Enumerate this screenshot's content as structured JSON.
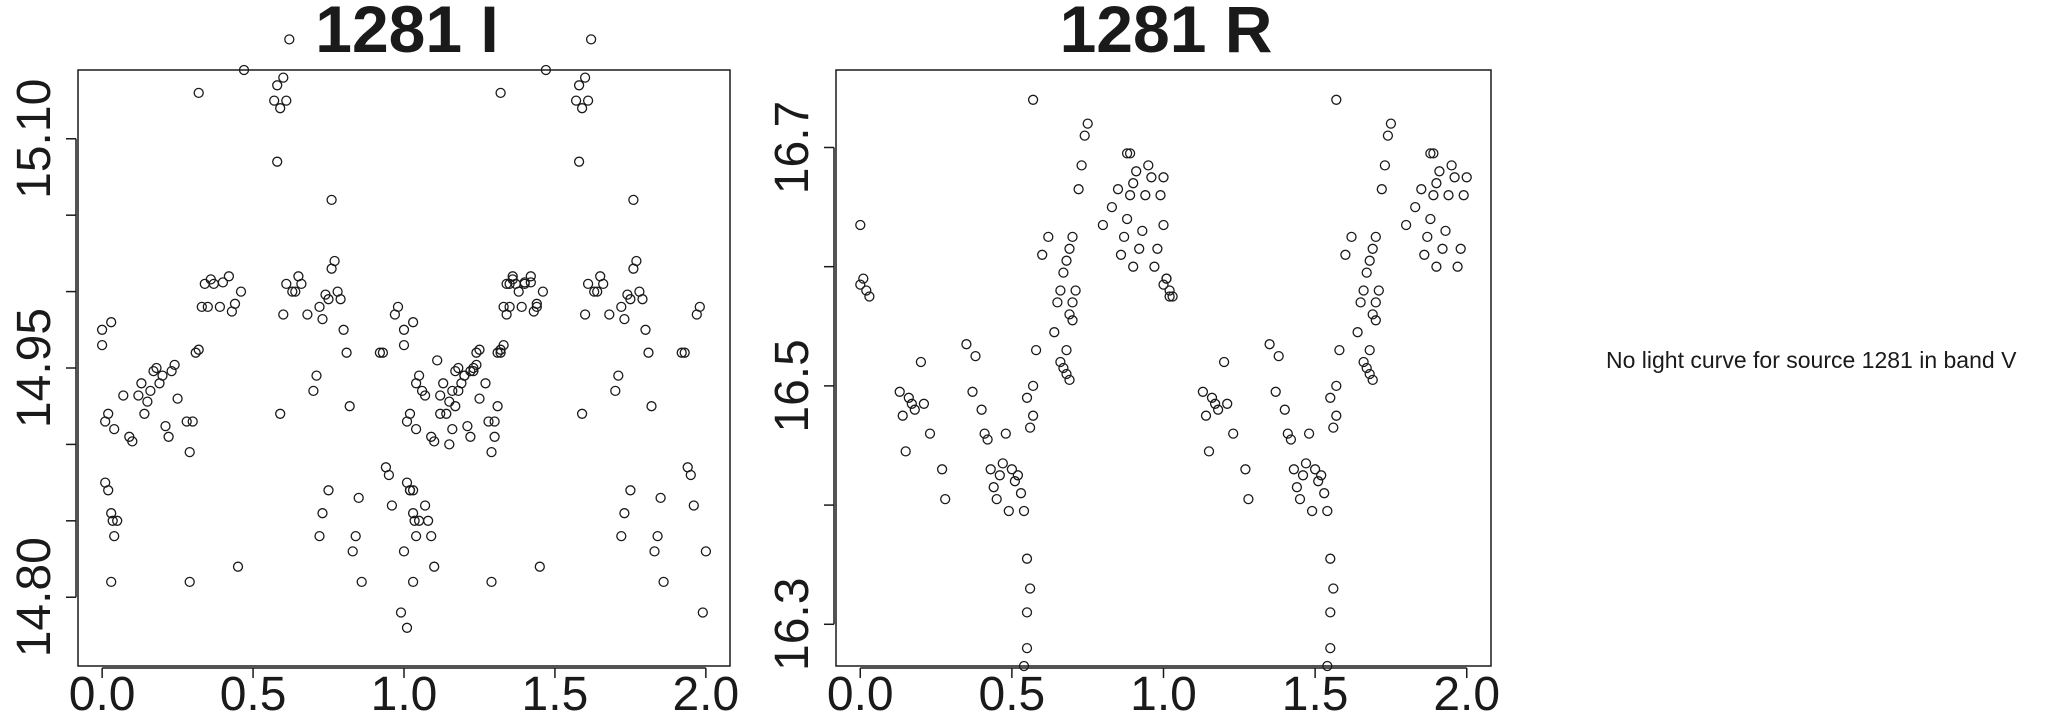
{
  "chart_data": [
    {
      "type": "scatter",
      "title": "1281 I",
      "xlim": [
        -0.08,
        2.08
      ],
      "ylim": [
        15.145,
        14.755
      ],
      "y_inverted": true,
      "x_ticks": [
        "0.0",
        "0.5",
        "1.0",
        "1.5",
        "2.0"
      ],
      "x_tick_values": [
        0.0,
        0.5,
        1.0,
        1.5,
        2.0
      ],
      "y_ticks": [
        "14.80",
        "14.95",
        "15.10"
      ],
      "y_tick_values": [
        14.8,
        14.95,
        15.1
      ],
      "y_minor_ticks": [
        14.85,
        14.9,
        15.0,
        15.05
      ],
      "marker": "open-circle",
      "base_points": [
        [
          0.0,
          14.965
        ],
        [
          0.01,
          14.875
        ],
        [
          0.02,
          14.87
        ],
        [
          0.03,
          14.855
        ],
        [
          0.035,
          14.85
        ],
        [
          0.04,
          14.84
        ],
        [
          0.01,
          14.915
        ],
        [
          0.02,
          14.92
        ],
        [
          0.04,
          14.91
        ],
        [
          0.03,
          14.81
        ],
        [
          0.05,
          14.85
        ],
        [
          0.0,
          14.975
        ],
        [
          0.03,
          14.98
        ],
        [
          0.07,
          14.932
        ],
        [
          0.09,
          14.905
        ],
        [
          0.1,
          14.902
        ],
        [
          0.12,
          14.932
        ],
        [
          0.13,
          14.94
        ],
        [
          0.14,
          14.92
        ],
        [
          0.15,
          14.928
        ],
        [
          0.16,
          14.935
        ],
        [
          0.17,
          14.948
        ],
        [
          0.18,
          14.95
        ],
        [
          0.19,
          14.94
        ],
        [
          0.2,
          14.945
        ],
        [
          0.21,
          14.912
        ],
        [
          0.22,
          14.905
        ],
        [
          0.23,
          14.948
        ],
        [
          0.24,
          14.952
        ],
        [
          0.25,
          14.93
        ],
        [
          0.28,
          14.915
        ],
        [
          0.29,
          14.895
        ],
        [
          0.3,
          14.915
        ],
        [
          0.31,
          14.96
        ],
        [
          0.32,
          14.962
        ],
        [
          0.33,
          14.99
        ],
        [
          0.34,
          15.005
        ],
        [
          0.35,
          14.99
        ],
        [
          0.36,
          15.008
        ],
        [
          0.37,
          15.005
        ],
        [
          0.39,
          14.99
        ],
        [
          0.4,
          15.006
        ],
        [
          0.42,
          15.01
        ],
        [
          0.43,
          14.987
        ],
        [
          0.44,
          14.992
        ],
        [
          0.46,
          15.0
        ],
        [
          0.29,
          14.81
        ],
        [
          0.32,
          15.13
        ],
        [
          0.45,
          14.82
        ],
        [
          0.47,
          15.145
        ],
        [
          0.57,
          15.125
        ],
        [
          0.58,
          15.135
        ],
        [
          0.59,
          15.12
        ],
        [
          0.6,
          15.14
        ],
        [
          0.61,
          15.125
        ],
        [
          0.62,
          15.165
        ],
        [
          0.58,
          15.085
        ],
        [
          0.59,
          14.92
        ],
        [
          0.6,
          14.985
        ],
        [
          0.61,
          15.005
        ],
        [
          0.63,
          15.0
        ],
        [
          0.64,
          15.0
        ],
        [
          0.65,
          15.01
        ],
        [
          0.66,
          15.005
        ],
        [
          0.68,
          14.985
        ],
        [
          0.7,
          14.935
        ],
        [
          0.71,
          14.945
        ],
        [
          0.72,
          14.99
        ],
        [
          0.73,
          14.982
        ],
        [
          0.74,
          14.998
        ],
        [
          0.75,
          14.995
        ],
        [
          0.76,
          15.015
        ],
        [
          0.77,
          15.02
        ],
        [
          0.78,
          15.0
        ],
        [
          0.79,
          14.995
        ],
        [
          0.8,
          14.975
        ],
        [
          0.81,
          14.96
        ],
        [
          0.82,
          14.925
        ],
        [
          0.83,
          14.83
        ],
        [
          0.84,
          14.84
        ],
        [
          0.85,
          14.865
        ],
        [
          0.86,
          14.81
        ],
        [
          0.72,
          14.84
        ],
        [
          0.73,
          14.855
        ],
        [
          0.75,
          14.87
        ],
        [
          0.76,
          15.06
        ],
        [
          0.92,
          14.96
        ],
        [
          0.93,
          14.96
        ],
        [
          0.94,
          14.885
        ],
        [
          0.95,
          14.88
        ],
        [
          0.96,
          14.86
        ],
        [
          0.97,
          14.985
        ],
        [
          0.98,
          14.99
        ],
        [
          0.99,
          14.79
        ],
        [
          1.0,
          14.83
        ],
        [
          1.01,
          14.78
        ],
        [
          1.02,
          14.87
        ],
        [
          1.03,
          14.87
        ],
        [
          1.04,
          14.94
        ],
        [
          1.05,
          14.945
        ],
        [
          1.06,
          14.935
        ],
        [
          1.07,
          14.86
        ],
        [
          1.08,
          14.85
        ],
        [
          1.09,
          14.84
        ],
        [
          1.1,
          14.82
        ],
        [
          1.11,
          14.955
        ],
        [
          1.12,
          14.92
        ],
        [
          1.15,
          14.9
        ],
        [
          1.16,
          14.91
        ],
        [
          1.17,
          14.925
        ],
        [
          1.18,
          14.935
        ],
        [
          1.2,
          14.945
        ],
        [
          1.22,
          14.948
        ],
        [
          1.23,
          14.95
        ],
        [
          1.24,
          14.96
        ],
        [
          1.25,
          14.962
        ],
        [
          1.27,
          14.94
        ],
        [
          1.3,
          14.905
        ],
        [
          1.31,
          14.925
        ],
        [
          1.32,
          14.96
        ],
        [
          1.33,
          14.965
        ],
        [
          1.34,
          14.985
        ],
        [
          1.35,
          15.005
        ],
        [
          1.36,
          15.01
        ],
        [
          1.38,
          15.0
        ],
        [
          1.4,
          15.005
        ],
        [
          1.42,
          15.006
        ],
        [
          1.44,
          14.99
        ]
      ],
      "period_shift": 1.0
    },
    {
      "type": "scatter",
      "title": "1281 R",
      "xlim": [
        -0.08,
        2.08
      ],
      "ylim": [
        16.765,
        16.265
      ],
      "y_inverted": true,
      "x_ticks": [
        "0.0",
        "0.5",
        "1.0",
        "1.5",
        "2.0"
      ],
      "x_tick_values": [
        0.0,
        0.5,
        1.0,
        1.5,
        2.0
      ],
      "y_ticks": [
        "16.3",
        "16.5",
        "16.7"
      ],
      "y_tick_values": [
        16.3,
        16.5,
        16.7
      ],
      "y_minor_ticks": [
        16.4,
        16.6
      ],
      "marker": "open-circle",
      "base_points": [
        [
          0.0,
          16.585
        ],
        [
          0.01,
          16.59
        ],
        [
          0.02,
          16.58
        ],
        [
          0.03,
          16.575
        ],
        [
          0.0,
          16.635
        ],
        [
          0.13,
          16.495
        ],
        [
          0.14,
          16.475
        ],
        [
          0.15,
          16.445
        ],
        [
          0.16,
          16.49
        ],
        [
          0.17,
          16.485
        ],
        [
          0.18,
          16.48
        ],
        [
          0.2,
          16.52
        ],
        [
          0.21,
          16.485
        ],
        [
          0.23,
          16.46
        ],
        [
          0.27,
          16.43
        ],
        [
          0.28,
          16.405
        ],
        [
          0.35,
          16.535
        ],
        [
          0.37,
          16.495
        ],
        [
          0.38,
          16.525
        ],
        [
          0.4,
          16.48
        ],
        [
          0.41,
          16.46
        ],
        [
          0.42,
          16.455
        ],
        [
          0.43,
          16.43
        ],
        [
          0.44,
          16.415
        ],
        [
          0.45,
          16.405
        ],
        [
          0.46,
          16.425
        ],
        [
          0.47,
          16.435
        ],
        [
          0.48,
          16.46
        ],
        [
          0.49,
          16.395
        ],
        [
          0.5,
          16.43
        ],
        [
          0.51,
          16.42
        ],
        [
          0.52,
          16.425
        ],
        [
          0.53,
          16.41
        ],
        [
          0.54,
          16.395
        ],
        [
          0.55,
          16.355
        ],
        [
          0.56,
          16.465
        ],
        [
          0.57,
          16.475
        ],
        [
          0.55,
          16.49
        ],
        [
          0.57,
          16.5
        ],
        [
          0.58,
          16.53
        ],
        [
          0.54,
          16.265
        ],
        [
          0.55,
          16.28
        ],
        [
          0.55,
          16.31
        ],
        [
          0.56,
          16.33
        ],
        [
          0.6,
          16.61
        ],
        [
          0.62,
          16.625
        ],
        [
          0.64,
          16.545
        ],
        [
          0.65,
          16.57
        ],
        [
          0.66,
          16.58
        ],
        [
          0.67,
          16.595
        ],
        [
          0.68,
          16.605
        ],
        [
          0.69,
          16.615
        ],
        [
          0.7,
          16.625
        ],
        [
          0.66,
          16.52
        ],
        [
          0.67,
          16.515
        ],
        [
          0.68,
          16.51
        ],
        [
          0.69,
          16.505
        ],
        [
          0.7,
          16.555
        ],
        [
          0.68,
          16.53
        ],
        [
          0.69,
          16.56
        ],
        [
          0.7,
          16.57
        ],
        [
          0.71,
          16.58
        ],
        [
          0.72,
          16.665
        ],
        [
          0.73,
          16.685
        ],
        [
          0.74,
          16.71
        ],
        [
          0.75,
          16.72
        ],
        [
          0.8,
          16.635
        ],
        [
          0.83,
          16.65
        ],
        [
          0.86,
          16.61
        ],
        [
          0.87,
          16.625
        ],
        [
          0.88,
          16.64
        ],
        [
          0.89,
          16.66
        ],
        [
          0.9,
          16.67
        ],
        [
          0.91,
          16.68
        ],
        [
          0.9,
          16.6
        ],
        [
          0.92,
          16.615
        ],
        [
          0.93,
          16.63
        ],
        [
          0.94,
          16.66
        ],
        [
          0.96,
          16.675
        ],
        [
          0.97,
          16.6
        ],
        [
          0.98,
          16.615
        ],
        [
          0.99,
          16.66
        ],
        [
          1.0,
          16.675
        ],
        [
          1.01,
          16.59
        ],
        [
          1.02,
          16.575
        ],
        [
          0.57,
          16.74
        ],
        [
          0.85,
          16.665
        ],
        [
          0.88,
          16.695
        ],
        [
          0.89,
          16.695
        ],
        [
          0.95,
          16.685
        ]
      ],
      "period_shift": 1.0
    }
  ],
  "notice": "No light curve for source 1281 in band V"
}
